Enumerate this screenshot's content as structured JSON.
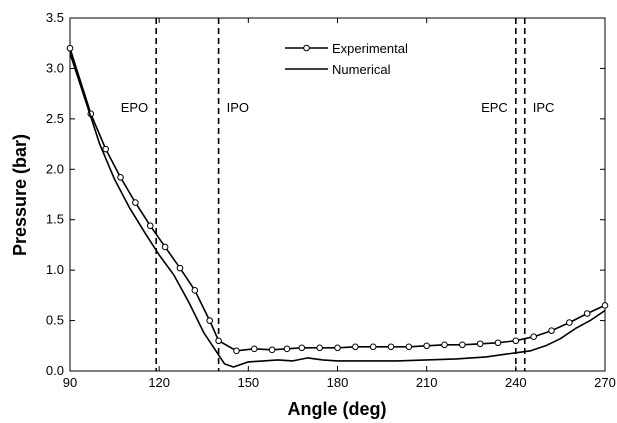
{
  "chart_data": {
    "type": "line",
    "title": "",
    "xlabel": "Angle (deg)",
    "ylabel": "Pressure (bar)",
    "xlim": [
      90,
      270
    ],
    "ylim": [
      0.0,
      3.5
    ],
    "x_ticks": [
      "90",
      "120",
      "150",
      "180",
      "210",
      "240",
      "270"
    ],
    "y_ticks": [
      "0.0",
      "0.5",
      "1.0",
      "1.5",
      "2.0",
      "2.5",
      "3.0",
      "3.5"
    ],
    "grid": false,
    "legend_position": "top-center",
    "series": [
      {
        "name": "Experimental",
        "marker": "open-circle",
        "x": [
          90,
          97,
          102,
          107,
          112,
          117,
          122,
          127,
          132,
          137,
          140,
          146,
          152,
          158,
          163,
          168,
          174,
          180,
          186,
          192,
          198,
          204,
          210,
          216,
          222,
          228,
          234,
          240,
          246,
          252,
          258,
          264,
          270
        ],
        "values": [
          3.2,
          2.55,
          2.2,
          1.92,
          1.67,
          1.44,
          1.23,
          1.02,
          0.8,
          0.5,
          0.3,
          0.2,
          0.22,
          0.21,
          0.22,
          0.23,
          0.23,
          0.23,
          0.24,
          0.24,
          0.24,
          0.24,
          0.25,
          0.26,
          0.26,
          0.27,
          0.28,
          0.3,
          0.34,
          0.4,
          0.48,
          0.57,
          0.65
        ]
      },
      {
        "name": "Numerical",
        "marker": "none",
        "x": [
          90,
          95,
          100,
          105,
          110,
          115,
          120,
          125,
          130,
          135,
          140,
          142,
          145,
          150,
          155,
          160,
          165,
          170,
          175,
          180,
          190,
          200,
          210,
          220,
          230,
          240,
          245,
          250,
          255,
          260,
          265,
          270
        ],
        "values": [
          3.15,
          2.7,
          2.25,
          1.9,
          1.62,
          1.38,
          1.15,
          0.95,
          0.68,
          0.38,
          0.16,
          0.07,
          0.04,
          0.09,
          0.1,
          0.11,
          0.1,
          0.13,
          0.11,
          0.1,
          0.1,
          0.1,
          0.11,
          0.12,
          0.14,
          0.18,
          0.2,
          0.25,
          0.32,
          0.42,
          0.5,
          0.6
        ]
      }
    ],
    "vertical_markers": [
      {
        "label": "EPO",
        "x": 119,
        "label_side": "left"
      },
      {
        "label": "IPO",
        "x": 140,
        "label_side": "right"
      },
      {
        "label": "EPC",
        "x": 240,
        "label_side": "left"
      },
      {
        "label": "IPC",
        "x": 243,
        "label_side": "right"
      }
    ],
    "colors": {
      "line": "#000000",
      "marker_fill": "#ffffff"
    }
  }
}
